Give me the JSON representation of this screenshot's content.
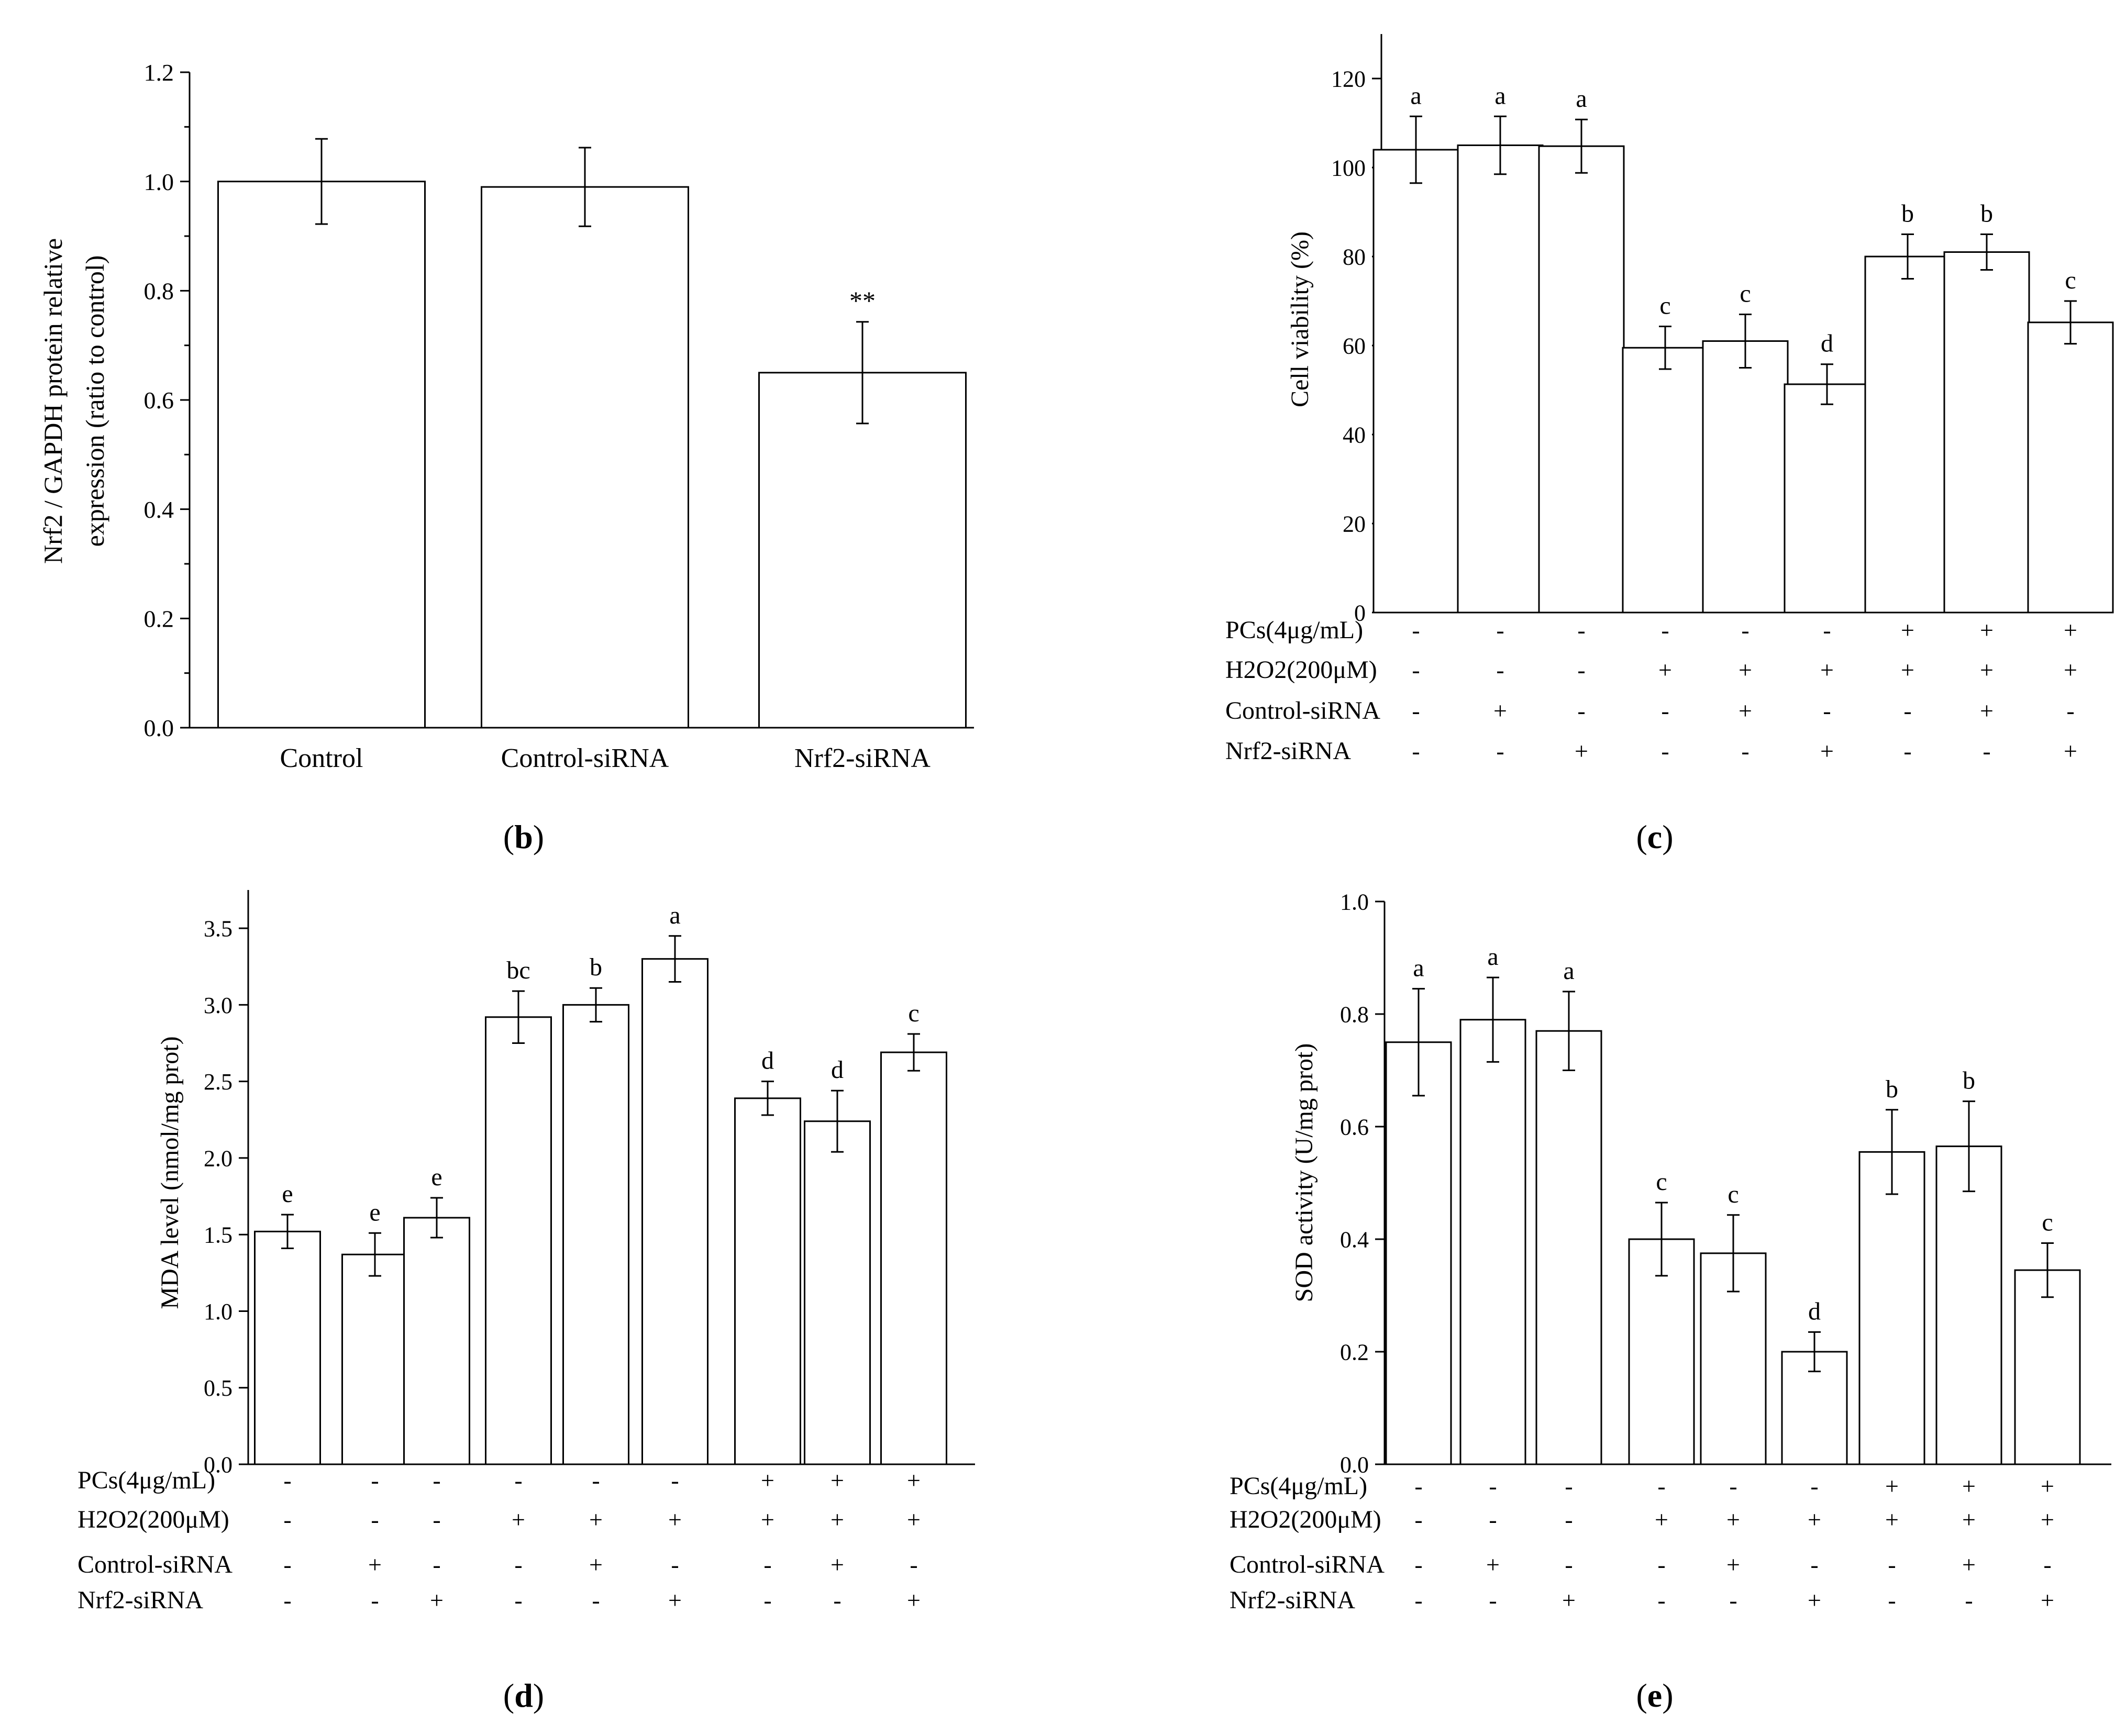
{
  "figure": {
    "colors": {
      "bar_fill": "#ffffff",
      "stroke": "#000000",
      "background": "#ffffff"
    }
  },
  "chart_data": [
    {
      "panel": "b",
      "panel_label": [
        "(",
        "b",
        ")"
      ],
      "type": "bar",
      "ylabel_lines": [
        "Nrf2 / GAPDH protein relative",
        "expression (ratio to control)"
      ],
      "ylim": [
        0,
        1.2
      ],
      "yticks": [
        "0.0",
        "0.2",
        "0.4",
        "0.6",
        "0.8",
        "1.0",
        "1.2"
      ],
      "categories": [
        "Control",
        "Control-siRNA",
        "Nrf2-siRNA"
      ],
      "values": [
        1.0,
        0.99,
        0.65
      ],
      "errors": [
        0.078,
        0.072,
        0.093
      ],
      "bar_labels": [
        "",
        "",
        "**"
      ]
    },
    {
      "panel": "c",
      "panel_label": [
        "(",
        "c",
        ")"
      ],
      "type": "bar",
      "ylabel": "Cell viability (%)",
      "ylim": [
        0,
        130
      ],
      "yticks": [
        "0",
        "20",
        "40",
        "60",
        "80",
        "100",
        "120"
      ],
      "values": [
        104,
        105,
        104.8,
        59.5,
        61,
        51.3,
        80,
        81,
        65.2
      ],
      "errors": [
        7.5,
        6.5,
        6,
        4.8,
        6,
        4.5,
        5,
        4,
        4.8
      ],
      "bar_labels": [
        "a",
        "a",
        "a",
        "c",
        "c",
        "d",
        "b",
        "b",
        "c"
      ],
      "treatment_rows": [
        {
          "label": "PCs(4μg/mL)",
          "signs": [
            "-",
            "-",
            "-",
            "-",
            "-",
            "-",
            "+",
            "+",
            "+"
          ]
        },
        {
          "label": "H2O2(200μM)",
          "signs": [
            "-",
            "-",
            "-",
            "+",
            "+",
            "+",
            "+",
            "+",
            "+"
          ]
        },
        {
          "label": "Control-siRNA",
          "signs": [
            "-",
            "+",
            "-",
            "-",
            "+",
            "-",
            "-",
            "+",
            "-"
          ]
        },
        {
          "label": "Nrf2-siRNA",
          "signs": [
            "-",
            "-",
            "+",
            "-",
            "-",
            "+",
            "-",
            "-",
            "+"
          ]
        }
      ]
    },
    {
      "panel": "d",
      "panel_label": [
        "(",
        "d",
        ")"
      ],
      "type": "bar",
      "ylabel": "MDA level (nmol/mg prot)",
      "ylim": [
        0,
        3.75
      ],
      "yticks": [
        "0.0",
        "0.5",
        "1.0",
        "1.5",
        "2.0",
        "2.5",
        "3.0",
        "3.5"
      ],
      "values": [
        1.52,
        1.37,
        1.61,
        2.92,
        3.0,
        3.3,
        2.39,
        2.24,
        2.69
      ],
      "errors": [
        0.11,
        0.14,
        0.13,
        0.17,
        0.11,
        0.15,
        0.11,
        0.2,
        0.12
      ],
      "bar_labels": [
        "e",
        "e",
        "e",
        "bc",
        "b",
        "a",
        "d",
        "d",
        "c"
      ],
      "treatment_rows": [
        {
          "label": "PCs(4μg/mL)",
          "signs": [
            "-",
            "-",
            "-",
            "-",
            "-",
            "-",
            "+",
            "+",
            "+"
          ]
        },
        {
          "label": "H2O2(200μM)",
          "signs": [
            "-",
            "-",
            "-",
            "+",
            "+",
            "+",
            "+",
            "+",
            "+"
          ]
        },
        {
          "label": "Control-siRNA",
          "signs": [
            "-",
            "+",
            "-",
            "-",
            "+",
            "-",
            "-",
            "+",
            "-"
          ]
        },
        {
          "label": "Nrf2-siRNA",
          "signs": [
            "-",
            "-",
            "+",
            "-",
            "-",
            "+",
            "-",
            "-",
            "+"
          ]
        }
      ]
    },
    {
      "panel": "e",
      "panel_label": [
        "(",
        "e",
        ")"
      ],
      "type": "bar",
      "ylabel": "SOD activity (U/mg prot)",
      "ylim": [
        0,
        1.0
      ],
      "yticks": [
        "0.0",
        "0.2",
        "0.4",
        "0.6",
        "0.8",
        "1.0"
      ],
      "values": [
        0.75,
        0.79,
        0.77,
        0.4,
        0.375,
        0.2,
        0.555,
        0.565,
        0.345
      ],
      "errors": [
        0.095,
        0.075,
        0.07,
        0.065,
        0.068,
        0.035,
        0.075,
        0.08,
        0.048
      ],
      "bar_labels": [
        "a",
        "a",
        "a",
        "c",
        "c",
        "d",
        "b",
        "b",
        "c"
      ],
      "treatment_rows": [
        {
          "label": "PCs(4μg/mL)",
          "signs": [
            "-",
            "-",
            "-",
            "-",
            "-",
            "-",
            "+",
            "+",
            "+"
          ]
        },
        {
          "label": "H2O2(200μM)",
          "signs": [
            "-",
            "-",
            "-",
            "+",
            "+",
            "+",
            "+",
            "+",
            "+"
          ]
        },
        {
          "label": "Control-siRNA",
          "signs": [
            "-",
            "+",
            "-",
            "-",
            "+",
            "-",
            "-",
            "+",
            "-"
          ]
        },
        {
          "label": "Nrf2-siRNA",
          "signs": [
            "-",
            "-",
            "+",
            "-",
            "-",
            "+",
            "-",
            "-",
            "+"
          ]
        }
      ]
    }
  ]
}
